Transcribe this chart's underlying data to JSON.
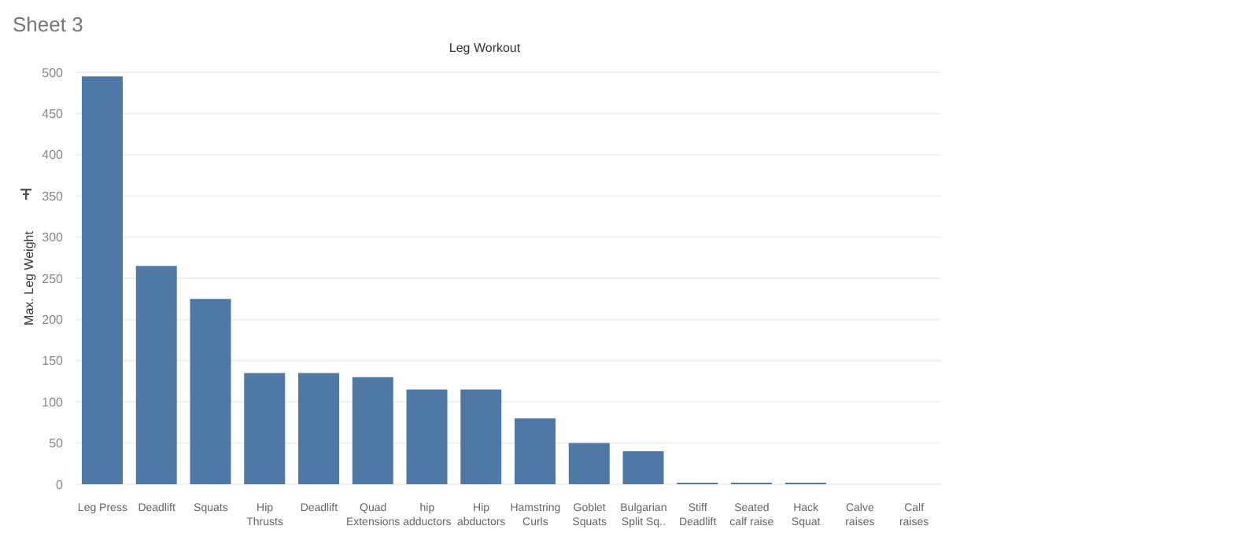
{
  "chart_data": {
    "type": "bar",
    "title": "Sheet 3",
    "subtitle": "Leg Workout",
    "ylabel": "Max. Leg Weight",
    "categories": [
      "Leg Press",
      "Deadlift",
      "Squats",
      "Hip Thrusts",
      "Deadlift",
      "Quad Extensions",
      "hip adductors",
      "Hip abductors",
      "Hamstring Curls",
      "Goblet Squats",
      "Bulgarian Split Sq..",
      "Stiff Deadlift",
      "Seated calf raise",
      "Hack Squat",
      "Calve raises",
      "Calf raises"
    ],
    "values": [
      495,
      265,
      225,
      135,
      135,
      130,
      115,
      115,
      80,
      50,
      40,
      2,
      2,
      2,
      null,
      null
    ],
    "color": "#4e79a7",
    "ylim": [
      0,
      500
    ],
    "yticks": [
      0,
      50,
      100,
      150,
      200,
      250,
      300,
      350,
      400,
      450,
      500
    ],
    "grid": "y"
  }
}
